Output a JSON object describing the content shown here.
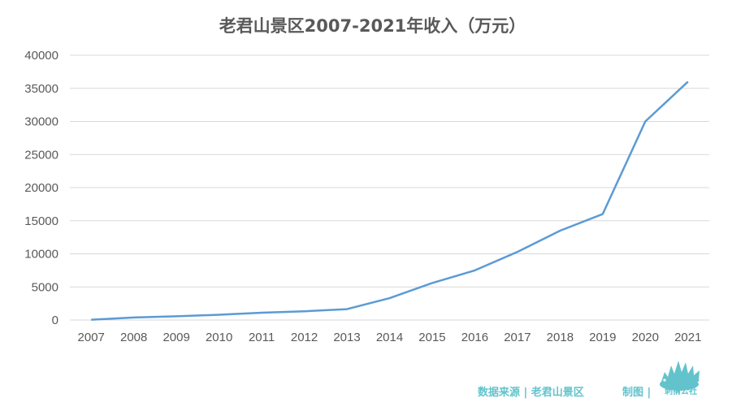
{
  "chart_data": {
    "type": "line",
    "title": "老君山景区2007-2021年收入（万元）",
    "x": [
      "2007",
      "2008",
      "2009",
      "2010",
      "2011",
      "2012",
      "2013",
      "2014",
      "2015",
      "2016",
      "2017",
      "2018",
      "2019",
      "2020",
      "2021"
    ],
    "series": [
      {
        "values": [
          50,
          380,
          560,
          800,
          1100,
          1320,
          1650,
          3300,
          5600,
          7500,
          10300,
          13500,
          16000,
          30000,
          36000
        ],
        "color": "#5b9bd5"
      }
    ],
    "ylim": [
      0,
      40000
    ],
    "yticks": [
      0,
      5000,
      10000,
      15000,
      20000,
      25000,
      30000,
      35000,
      40000
    ],
    "grid": true,
    "legend": "none"
  },
  "footer": {
    "source": "数据来源 | 老君山景区",
    "made_by": "制图 |",
    "brand": "刺猬公社",
    "accent_color": "#62c3cc"
  }
}
